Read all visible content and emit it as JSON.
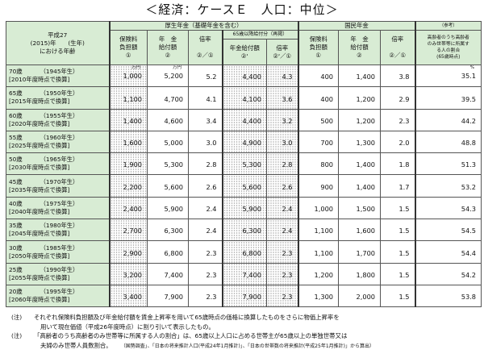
{
  "title": "＜経済：ケースＥ　人口：中位＞",
  "headers": {
    "age_col": "平成27\n(2015)年　　(生年)\nにおける年齢",
    "kosei_group": "厚生年金（基礎年金を含む）",
    "kokumin_group": "国民年金",
    "ref_group": "（参考）",
    "kosei_c1": "保険料\n負担額\n①",
    "kosei_c2": "年　金\n給付額\n②",
    "kosei_c3": "倍率\n\n②／①",
    "kosei_sub": "65歳以降給付分（再掲）",
    "kosei_c4": "年金給付額\n②'",
    "kosei_c5": "倍率\n②'／①",
    "kokumin_c1": "保険料\n負担額\n①",
    "kokumin_c2": "年　金\n給付額\n②",
    "kokumin_c3": "倍率\n\n②／①",
    "ref_c": "高齢者のうち高齢者\nのみ世帯等に所属す\nる人の割合\n(65歳時点)"
  },
  "units": {
    "man_yen": "万円",
    "percent": "%"
  },
  "rows": [
    {
      "age": "70歳",
      "birth": "（1945年生）",
      "conv": "[2010年度時点で換算]",
      "k_prem": "1,000",
      "k_ben": "5,200",
      "k_ratio": "5.2",
      "k_ben65": "4,400",
      "k_ratio65": "4.3",
      "n_prem": "400",
      "n_ben": "1,400",
      "n_ratio": "3.8",
      "ref": "35.1"
    },
    {
      "age": "65歳",
      "birth": "（1950年生）",
      "conv": "[2015年度時点で換算]",
      "k_prem": "1,100",
      "k_ben": "4,700",
      "k_ratio": "4.1",
      "k_ben65": "4,100",
      "k_ratio65": "3.6",
      "n_prem": "400",
      "n_ben": "1,200",
      "n_ratio": "2.9",
      "ref": "39.5"
    },
    {
      "age": "60歳",
      "birth": "（1955年生）",
      "conv": "[2020年度時点で換算]",
      "k_prem": "1,400",
      "k_ben": "4,600",
      "k_ratio": "3.4",
      "k_ben65": "4,400",
      "k_ratio65": "3.2",
      "n_prem": "500",
      "n_ben": "1,200",
      "n_ratio": "2.3",
      "ref": "44.2"
    },
    {
      "age": "55歳",
      "birth": "（1960年生）",
      "conv": "[2025年度時点で換算]",
      "k_prem": "1,600",
      "k_ben": "5,000",
      "k_ratio": "3.0",
      "k_ben65": "4,900",
      "k_ratio65": "3.0",
      "n_prem": "700",
      "n_ben": "1,300",
      "n_ratio": "2.0",
      "ref": "48.8"
    },
    {
      "age": "50歳",
      "birth": "（1965年生）",
      "conv": "[2030年度時点で換算]",
      "k_prem": "1,900",
      "k_ben": "5,300",
      "k_ratio": "2.8",
      "k_ben65": "5,300",
      "k_ratio65": "2.8",
      "n_prem": "800",
      "n_ben": "1,400",
      "n_ratio": "1.8",
      "ref": "51.3"
    },
    {
      "age": "45歳",
      "birth": "（1970年生）",
      "conv": "[2035年度時点で換算]",
      "k_prem": "2,200",
      "k_ben": "5,600",
      "k_ratio": "2.6",
      "k_ben65": "5,600",
      "k_ratio65": "2.6",
      "n_prem": "900",
      "n_ben": "1,400",
      "n_ratio": "1.7",
      "ref": "53.2"
    },
    {
      "age": "40歳",
      "birth": "（1975年生）",
      "conv": "[2040年度時点で換算]",
      "k_prem": "2,400",
      "k_ben": "5,900",
      "k_ratio": "2.4",
      "k_ben65": "5,900",
      "k_ratio65": "2.4",
      "n_prem": "1,000",
      "n_ben": "1,500",
      "n_ratio": "1.5",
      "ref": "54.3"
    },
    {
      "age": "35歳",
      "birth": "（1980年生）",
      "conv": "[2045年度時点で換算]",
      "k_prem": "2,700",
      "k_ben": "6,300",
      "k_ratio": "2.4",
      "k_ben65": "6,300",
      "k_ratio65": "2.4",
      "n_prem": "1,100",
      "n_ben": "1,600",
      "n_ratio": "1.5",
      "ref": "54.5"
    },
    {
      "age": "30歳",
      "birth": "（1985年生）",
      "conv": "[2050年度時点で換算]",
      "k_prem": "2,900",
      "k_ben": "6,800",
      "k_ratio": "2.3",
      "k_ben65": "6,800",
      "k_ratio65": "2.3",
      "n_prem": "1,100",
      "n_ben": "1,700",
      "n_ratio": "1.5",
      "ref": "54.4"
    },
    {
      "age": "25歳",
      "birth": "（1990年生）",
      "conv": "[2055年度時点で換算]",
      "k_prem": "3,200",
      "k_ben": "7,400",
      "k_ratio": "2.3",
      "k_ben65": "7,400",
      "k_ratio65": "2.3",
      "n_prem": "1,200",
      "n_ben": "1,800",
      "n_ratio": "1.5",
      "ref": "54.2"
    },
    {
      "age": "20歳",
      "birth": "（1995年生）",
      "conv": "[2060年度時点で換算]",
      "k_prem": "3,400",
      "k_ben": "7,900",
      "k_ratio": "2.3",
      "k_ben65": "7,900",
      "k_ratio65": "2.3",
      "n_prem": "1,300",
      "n_ben": "2,000",
      "n_ratio": "1.5",
      "ref": "53.8"
    }
  ],
  "notes": [
    {
      "mark": "(注)",
      "lines": [
        "それぞれ保険料負担額及び年金給付額を賃金上昇率を用いて65歳時点の価格に換算したものをさらに物価上昇率を",
        "用いて現在価値（平成26年度時点）に割り引いて表示したもの。"
      ]
    },
    {
      "mark": "(注)",
      "lines": [
        "「高齢者のうち高齢者のみ世帯等に所属する人の割合」は、65歳以上人口に占める世帯主が65歳以上の単独世帯又は",
        "夫婦のみ世帯人員数割合。"
      ],
      "source": "（国勢調査」、「日本の将来推計人口(平成24年1月推計)」、「日本の世帯数の将来推計(平成25年1月推計)」から算出）"
    }
  ]
}
